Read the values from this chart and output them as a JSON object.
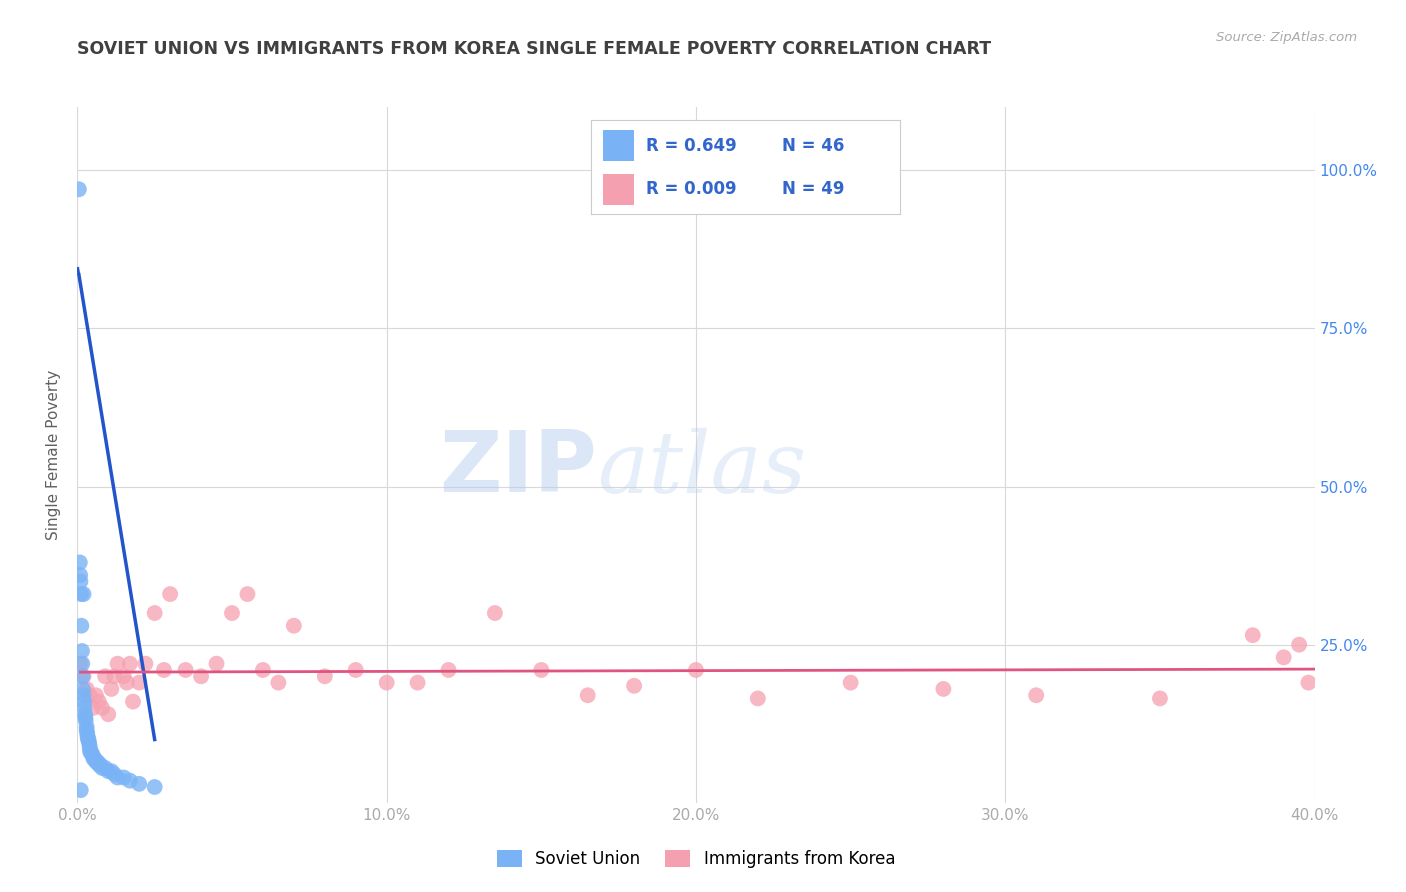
{
  "title": "SOVIET UNION VS IMMIGRANTS FROM KOREA SINGLE FEMALE POVERTY CORRELATION CHART",
  "source": "Source: ZipAtlas.com",
  "ylabel": "Single Female Poverty",
  "xlim": [
    0.0,
    0.4
  ],
  "ylim": [
    0.0,
    1.1
  ],
  "xticks": [
    0.0,
    0.1,
    0.2,
    0.3,
    0.4
  ],
  "xticklabels": [
    "0.0%",
    "10.0%",
    "20.0%",
    "30.0%",
    "40.0%"
  ],
  "yticks": [
    0.25,
    0.5,
    0.75,
    1.0
  ],
  "yticklabels": [
    "25.0%",
    "50.0%",
    "75.0%",
    "100.0%"
  ],
  "legend_label1": "Soviet Union",
  "legend_label2": "Immigrants from Korea",
  "soviet_color": "#7ab3f5",
  "korea_color": "#f5a0b0",
  "trendline_soviet_color": "#2255cc",
  "trendline_korea_color": "#e05580",
  "watermark_zip": "ZIP",
  "watermark_atlas": "atlas",
  "background_color": "#ffffff",
  "grid_color": "#d8d8d8",
  "title_color": "#404040",
  "axis_label_color": "#606060",
  "tick_color": "#aaaaaa",
  "right_tick_color": "#4488ee",
  "soviet_x": [
    0.0005,
    0.0008,
    0.001,
    0.0012,
    0.0013,
    0.0015,
    0.0016,
    0.0017,
    0.0018,
    0.002,
    0.002,
    0.0022,
    0.0023,
    0.0025,
    0.0026,
    0.0027,
    0.003,
    0.003,
    0.0032,
    0.0033,
    0.0035,
    0.0036,
    0.0038,
    0.004,
    0.004,
    0.0042,
    0.0045,
    0.005,
    0.0052,
    0.0055,
    0.006,
    0.0065,
    0.007,
    0.0075,
    0.008,
    0.009,
    0.01,
    0.011,
    0.012,
    0.013,
    0.015,
    0.017,
    0.02,
    0.025,
    0.0009,
    0.0011
  ],
  "soviet_y": [
    0.97,
    0.38,
    0.35,
    0.33,
    0.28,
    0.24,
    0.22,
    0.2,
    0.18,
    0.17,
    0.33,
    0.16,
    0.15,
    0.14,
    0.135,
    0.13,
    0.12,
    0.115,
    0.11,
    0.105,
    0.1,
    0.1,
    0.095,
    0.09,
    0.085,
    0.08,
    0.08,
    0.075,
    0.07,
    0.07,
    0.065,
    0.065,
    0.06,
    0.06,
    0.055,
    0.055,
    0.05,
    0.05,
    0.045,
    0.04,
    0.04,
    0.035,
    0.03,
    0.025,
    0.36,
    0.02
  ],
  "korea_x": [
    0.001,
    0.002,
    0.003,
    0.004,
    0.005,
    0.006,
    0.007,
    0.008,
    0.009,
    0.01,
    0.011,
    0.012,
    0.013,
    0.015,
    0.016,
    0.017,
    0.018,
    0.02,
    0.022,
    0.025,
    0.028,
    0.03,
    0.035,
    0.04,
    0.045,
    0.05,
    0.055,
    0.06,
    0.065,
    0.07,
    0.08,
    0.09,
    0.1,
    0.11,
    0.12,
    0.135,
    0.15,
    0.165,
    0.18,
    0.2,
    0.22,
    0.25,
    0.28,
    0.31,
    0.35,
    0.38,
    0.39,
    0.395,
    0.398
  ],
  "korea_y": [
    0.22,
    0.2,
    0.18,
    0.17,
    0.15,
    0.17,
    0.16,
    0.15,
    0.2,
    0.14,
    0.18,
    0.2,
    0.22,
    0.2,
    0.19,
    0.22,
    0.16,
    0.19,
    0.22,
    0.3,
    0.21,
    0.33,
    0.21,
    0.2,
    0.22,
    0.3,
    0.33,
    0.21,
    0.19,
    0.28,
    0.2,
    0.21,
    0.19,
    0.19,
    0.21,
    0.3,
    0.21,
    0.17,
    0.185,
    0.21,
    0.165,
    0.19,
    0.18,
    0.17,
    0.165,
    0.265,
    0.23,
    0.25,
    0.19
  ],
  "trendline_soviet_x_min": 0.0005,
  "trendline_soviet_x_max": 0.025,
  "trendline_korea_x_min": 0.001,
  "trendline_korea_x_max": 0.4
}
